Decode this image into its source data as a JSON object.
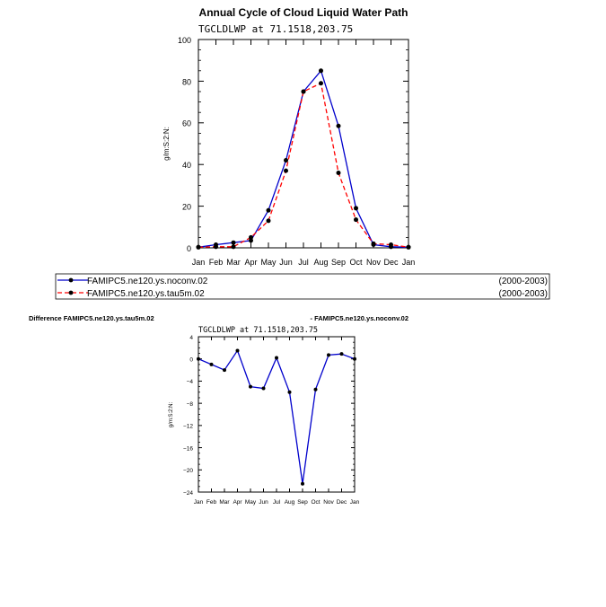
{
  "chart_data": [
    {
      "type": "line",
      "title": "Annual Cycle of Cloud Liquid Water Path",
      "subtitle": "TGCLDLWP  at 71.1518,203.75",
      "xlabel": "",
      "ylabel": "g/m:S:2:N:",
      "ylim": [
        0,
        100
      ],
      "yticks": [
        0,
        20,
        40,
        60,
        80,
        100
      ],
      "categories": [
        "Jan",
        "Feb",
        "Mar",
        "Apr",
        "May",
        "Jun",
        "Jul",
        "Aug",
        "Sep",
        "Oct",
        "Nov",
        "Dec",
        "Jan"
      ],
      "series": [
        {
          "name": "FAMIPC5.ne120.ys.noconv.02",
          "period": "(2000-2003)",
          "color": "#0000cc",
          "style": "solid",
          "values": [
            0.3,
            1.5,
            2.5,
            3.5,
            18,
            42,
            75,
            85,
            58.5,
            19,
            1.5,
            0.5,
            0.3
          ]
        },
        {
          "name": "FAMIPC5.ne120.ys.tau5m.02",
          "period": "(2000-2003)",
          "color": "#ff0000",
          "style": "dashed",
          "values": [
            0.3,
            0.5,
            0.5,
            5,
            13,
            37,
            75,
            79,
            36,
            13.5,
            2,
            1.5,
            0.3
          ]
        }
      ]
    },
    {
      "type": "line",
      "title_left": "Difference FAMIPC5.ne120.ys.tau5m.02",
      "title_right": "- FAMIPC5.ne120.ys.noconv.02",
      "subtitle": "TGCLDLWP  at 71.1518,203.75",
      "xlabel": "",
      "ylabel": "g/m:S:2:N:",
      "ylim": [
        -24,
        4
      ],
      "yticks": [
        -24,
        -20,
        -16,
        -12,
        -8,
        -4,
        0,
        4
      ],
      "categories": [
        "Jan",
        "Feb",
        "Mar",
        "Apr",
        "May",
        "Jun",
        "Jul",
        "Aug",
        "Sep",
        "Oct",
        "Nov",
        "Dec",
        "Jan"
      ],
      "series": [
        {
          "name": "Difference",
          "color": "#0000cc",
          "style": "solid",
          "values": [
            0,
            -1,
            -2,
            1.5,
            -5,
            -5.3,
            0.2,
            -6,
            -22.5,
            -5.5,
            0.7,
            0.9,
            0
          ]
        }
      ]
    }
  ]
}
